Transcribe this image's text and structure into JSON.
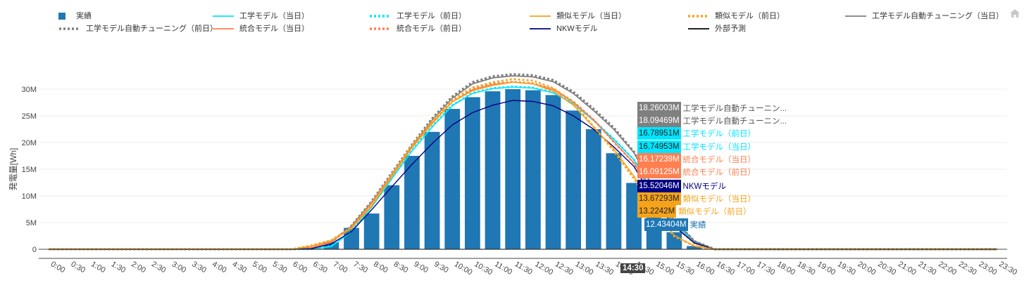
{
  "home_icon": "home-icon",
  "legend": [
    {
      "label": "実績",
      "color": "#1f77b4",
      "style": "square"
    },
    {
      "label": "工学モデル（当日）",
      "color": "#00e5ff",
      "style": "solid"
    },
    {
      "label": "工学モデル（前日）",
      "color": "#00e5ff",
      "style": "dotted"
    },
    {
      "label": "類似モデル（当日）",
      "color": "#f5a31a",
      "style": "solid"
    },
    {
      "label": "類似モデル（前日）",
      "color": "#f5a31a",
      "style": "dotted"
    },
    {
      "label": "工学モデル自動チューニング（当日）",
      "color": "#7f7f7f",
      "style": "solid"
    },
    {
      "label": "工学モデル自動チューニング（前日）",
      "color": "#7f7f7f",
      "style": "dotted"
    },
    {
      "label": "統合モデル（当日）",
      "color": "#ff7f50",
      "style": "solid"
    },
    {
      "label": "統合モデル（前日）",
      "color": "#ff7f50",
      "style": "dotted"
    },
    {
      "label": "NKWモデル",
      "color": "#000080",
      "style": "solid"
    },
    {
      "label": "外部予測",
      "color": "#000000",
      "style": "solid"
    }
  ],
  "hover": {
    "x_label": "14:30",
    "items": [
      {
        "value": "18.26003M",
        "name": "工学モデル自動チューニン...",
        "color": "#7f7f7f"
      },
      {
        "value": "18.09469M",
        "name": "工学モデル自動チューニン...",
        "color": "#7f7f7f"
      },
      {
        "value": "16.78951M",
        "name": "工学モデル（前日）",
        "color": "#00e5ff"
      },
      {
        "value": "16.74953M",
        "name": "工学モデル（当日）",
        "color": "#00e5ff"
      },
      {
        "value": "16.17239M",
        "name": "統合モデル（当日）",
        "color": "#ff7f50"
      },
      {
        "value": "16.09125M",
        "name": "統合モデル（前日）",
        "color": "#ff7f50"
      },
      {
        "value": "15.52046M",
        "name": "NKWモデル",
        "color": "#000080"
      },
      {
        "value": "13.67293M",
        "name": "類似モデル（当日）",
        "color": "#f5a31a"
      },
      {
        "value": "13.2242M",
        "name": "類似モデル（前日）",
        "color": "#f5a31a"
      },
      {
        "value": "12.43404M",
        "name": "実績",
        "color": "#1f77b4"
      }
    ]
  },
  "chart_data": {
    "type": "bar",
    "ylabel": "発電量[Wh]",
    "ylim": [
      0,
      33
    ],
    "yticks": [
      0,
      5,
      10,
      15,
      20,
      25,
      30
    ],
    "ytick_labels": [
      "0",
      "5M",
      "10M",
      "15M",
      "20M",
      "25M",
      "30M"
    ],
    "grid": true,
    "legend_position": "top",
    "categories": [
      "0:00",
      "0:30",
      "1:00",
      "1:30",
      "2:00",
      "2:30",
      "3:00",
      "3:30",
      "4:00",
      "4:30",
      "5:00",
      "5:30",
      "6:00",
      "6:30",
      "7:00",
      "7:30",
      "8:00",
      "8:30",
      "9:00",
      "9:30",
      "10:00",
      "10:30",
      "11:00",
      "11:30",
      "12:00",
      "12:30",
      "13:00",
      "13:30",
      "14:00",
      "14:30",
      "15:00",
      "15:30",
      "16:00",
      "16:30",
      "17:00",
      "17:30",
      "18:00",
      "18:30",
      "19:00",
      "19:30",
      "20:00",
      "20:30",
      "21:00",
      "21:30",
      "22:00",
      "22:30",
      "23:00",
      "23:30"
    ],
    "bars": {
      "name": "実績",
      "color": "#1f77b4",
      "values": [
        0,
        0,
        0,
        0,
        0,
        0,
        0,
        0,
        0,
        0,
        0,
        0,
        0,
        0,
        1.3,
        4,
        6.7,
        12,
        17.5,
        22,
        26.3,
        28.5,
        29.6,
        30,
        29.8,
        28.9,
        26,
        22.5,
        18,
        12.43,
        7,
        3.2,
        0.6,
        0,
        0,
        0,
        0,
        0,
        0,
        0,
        0,
        0,
        0,
        0,
        0,
        0,
        0,
        0
      ]
    },
    "series": [
      {
        "name": "工学モデル自動チューニング（前日）",
        "color": "#7f7f7f",
        "dash": "3,3",
        "width": 3.2,
        "values": [
          0,
          0,
          0,
          0,
          0,
          0,
          0,
          0,
          0,
          0,
          0,
          0,
          0,
          0.2,
          1.3,
          4.4,
          9,
          14.3,
          19.6,
          24.5,
          28.6,
          31.3,
          32.4,
          32.8,
          32.6,
          31.7,
          29.5,
          26.3,
          22.8,
          18.26,
          11.5,
          5.5,
          1.5,
          0,
          0,
          0,
          0,
          0,
          0,
          0,
          0,
          0,
          0,
          0,
          0,
          0,
          0,
          0
        ]
      },
      {
        "name": "工学モデル自動チューニング（当日）",
        "color": "#7f7f7f",
        "dash": "",
        "width": 1.8,
        "values": [
          0,
          0,
          0,
          0,
          0,
          0,
          0,
          0,
          0,
          0,
          0,
          0,
          0,
          0.2,
          1.3,
          4.3,
          8.8,
          14,
          19.3,
          24.2,
          28.3,
          31,
          32.1,
          32.5,
          32.3,
          31.4,
          29.2,
          26,
          22.5,
          18.09,
          11.3,
          5.4,
          1.5,
          0,
          0,
          0,
          0,
          0,
          0,
          0,
          0,
          0,
          0,
          0,
          0,
          0,
          0,
          0
        ]
      },
      {
        "name": "工学モデル（前日）",
        "color": "#00e5ff",
        "dash": "3,3",
        "width": 2.6,
        "values": [
          0,
          0,
          0,
          0,
          0,
          0,
          0,
          0,
          0,
          0,
          0,
          0,
          0,
          0,
          0.6,
          3.4,
          8,
          13.3,
          18.5,
          23,
          27,
          29.3,
          30.2,
          30.5,
          30.3,
          29.4,
          27.4,
          24.2,
          20.7,
          16.79,
          10.5,
          5,
          1.2,
          0,
          0,
          0,
          0,
          0,
          0,
          0,
          0,
          0,
          0,
          0,
          0,
          0,
          0,
          0
        ]
      },
      {
        "name": "工学モデル（当日）",
        "color": "#00e5ff",
        "dash": "",
        "width": 1.6,
        "values": [
          0,
          0,
          0,
          0,
          0,
          0,
          0,
          0,
          0,
          0,
          0,
          0,
          0,
          0,
          0.5,
          3.3,
          7.9,
          13.2,
          18.4,
          22.9,
          26.9,
          29.2,
          30.1,
          30.4,
          30.2,
          29.3,
          27.3,
          24.1,
          20.6,
          16.75,
          10.4,
          4.9,
          1.2,
          0,
          0,
          0,
          0,
          0,
          0,
          0,
          0,
          0,
          0,
          0,
          0,
          0,
          0,
          0
        ]
      },
      {
        "name": "統合モデル（当日）",
        "color": "#ff7f50",
        "dash": "",
        "width": 1.6,
        "values": [
          0,
          0,
          0,
          0,
          0,
          0,
          0,
          0,
          0,
          0,
          0,
          0,
          0,
          0.3,
          1.4,
          4,
          8.6,
          13.9,
          19.1,
          23.7,
          27.6,
          29.9,
          30.9,
          31.3,
          31,
          29.9,
          27.6,
          24.2,
          20.2,
          16.17,
          10,
          4.5,
          1.1,
          0,
          0,
          0,
          0,
          0,
          0,
          0,
          0,
          0,
          0,
          0,
          0,
          0,
          0,
          0
        ]
      },
      {
        "name": "統合モデル（前日）",
        "color": "#ff7f50",
        "dash": "3,3",
        "width": 2.6,
        "values": [
          0,
          0,
          0,
          0,
          0,
          0,
          0,
          0,
          0,
          0,
          0,
          0,
          0,
          0.3,
          1.4,
          4.1,
          8.7,
          14,
          19.2,
          23.8,
          27.7,
          30,
          31,
          31.4,
          31.1,
          30,
          27.7,
          24.3,
          20.1,
          16.09,
          9.9,
          4.4,
          1.1,
          0,
          0,
          0,
          0,
          0,
          0,
          0,
          0,
          0,
          0,
          0,
          0,
          0,
          0,
          0
        ]
      },
      {
        "name": "NKWモデル",
        "color": "#000080",
        "dash": "",
        "width": 1.4,
        "values": [
          0,
          0,
          0,
          0,
          0,
          0,
          0,
          0,
          0,
          0,
          0,
          0,
          0,
          0.1,
          1,
          3.3,
          7.4,
          11.7,
          15.9,
          19.8,
          23.3,
          25.6,
          27,
          27.9,
          27.7,
          26.9,
          25,
          22.5,
          19.2,
          15.52,
          9.2,
          4.3,
          1.2,
          0,
          0,
          0,
          0,
          0,
          0,
          0,
          0,
          0,
          0,
          0,
          0,
          0,
          0,
          0
        ]
      },
      {
        "name": "類似モデル（当日）",
        "color": "#f5a31a",
        "dash": "",
        "width": 1.6,
        "values": [
          0,
          0,
          0,
          0,
          0,
          0,
          0,
          0,
          0,
          0,
          0,
          0,
          0,
          0.6,
          1.6,
          3.9,
          8.1,
          13.6,
          19,
          23.5,
          27.6,
          29.7,
          30.7,
          31.3,
          31,
          29.6,
          27,
          22.9,
          18.8,
          13.67,
          7.5,
          2.6,
          0.6,
          0,
          0,
          0,
          0,
          0,
          0,
          0,
          0,
          0,
          0,
          0,
          0,
          0,
          0,
          0
        ]
      },
      {
        "name": "類似モデル（前日）",
        "color": "#f5a31a",
        "dash": "3,3",
        "width": 2.6,
        "values": [
          0,
          0,
          0,
          0,
          0,
          0,
          0,
          0,
          0,
          0,
          0,
          0,
          0,
          0.7,
          1.7,
          4.1,
          8.4,
          14,
          19.5,
          24,
          28,
          30.3,
          31.3,
          31.9,
          31.6,
          30.2,
          27.5,
          23,
          18.4,
          13.22,
          7.1,
          2.4,
          0.6,
          0,
          0,
          0,
          0,
          0,
          0,
          0,
          0,
          0,
          0,
          0,
          0,
          0,
          0,
          0
        ]
      },
      {
        "name": "外部予測",
        "color": "#000000",
        "dash": "",
        "width": 1.2,
        "values": [
          0,
          0,
          0,
          0,
          0,
          0,
          0,
          0,
          0,
          0,
          0,
          0,
          0,
          0,
          0,
          0,
          0,
          0,
          0,
          0,
          0,
          0,
          0,
          0,
          0,
          0,
          0,
          0,
          0,
          0,
          0,
          0,
          0,
          0,
          0,
          0,
          0,
          0,
          0,
          0,
          0,
          0,
          0,
          0,
          0,
          0,
          0,
          0
        ]
      }
    ]
  }
}
